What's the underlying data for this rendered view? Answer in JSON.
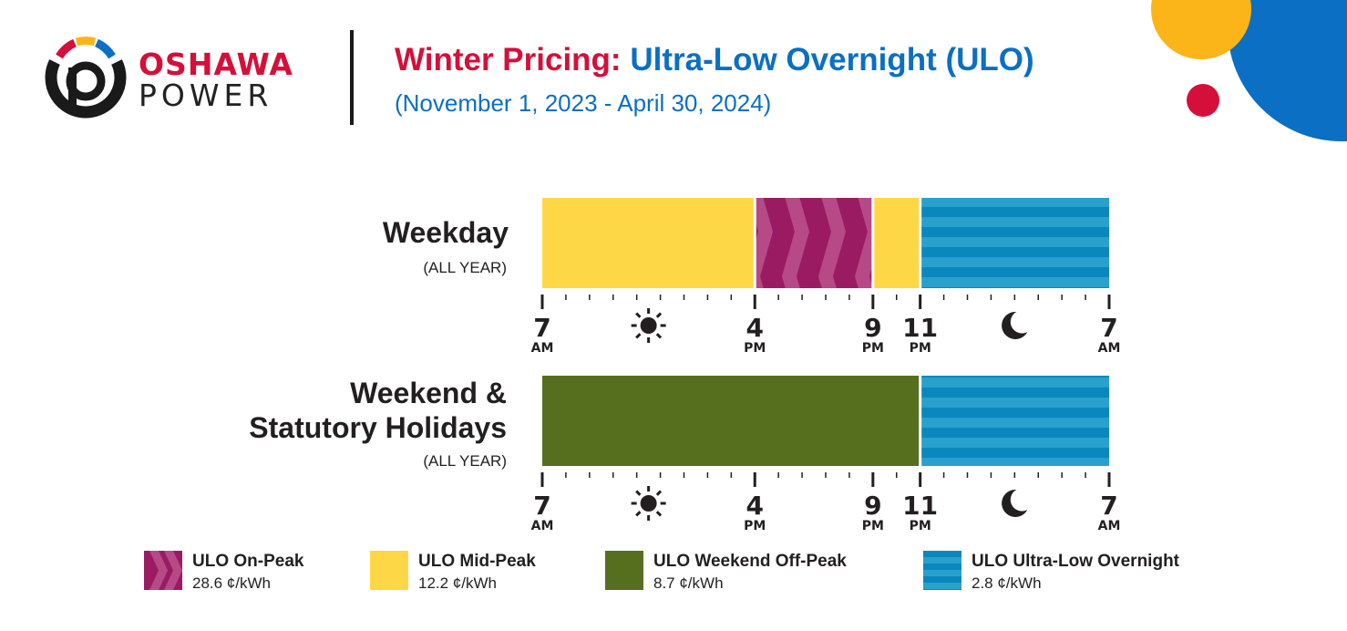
{
  "brand": {
    "name_line1": "OSHAWA",
    "name_line2": "POWER",
    "colors": {
      "red": "#d50f3a",
      "yellow": "#fbb519",
      "blue": "#0b6fc3",
      "black": "#1a1a1a"
    }
  },
  "header": {
    "title_part1": "Winter Pricing:",
    "title_part2": "Ultra-Low Overnight (ULO)",
    "dates": "(November 1, 2023 - April 30, 2024)"
  },
  "chart_data": {
    "type": "bar",
    "subtype": "time-of-use-schedule",
    "time_axis_hours_from_7am": [
      0,
      24
    ],
    "tick_interval_hours": 1,
    "major_ticks": [
      {
        "hour": 0,
        "num": "7",
        "ampm": "AM"
      },
      {
        "hour": 9,
        "num": "4",
        "ampm": "PM"
      },
      {
        "hour": 14,
        "num": "9",
        "ampm": "PM"
      },
      {
        "hour": 16,
        "num": "11",
        "ampm": "PM"
      },
      {
        "hour": 24,
        "num": "7",
        "ampm": "AM"
      }
    ],
    "axis_icons": [
      {
        "icon": "sun-icon",
        "hour": 4.5
      },
      {
        "icon": "moon-icon",
        "hour": 20
      }
    ],
    "rows": [
      {
        "title": "Weekday",
        "subtitle": "(ALL YEAR)",
        "segments": [
          {
            "start": "7 AM",
            "end": "4 PM",
            "start_hour": 0,
            "end_hour": 9,
            "category": "mid"
          },
          {
            "start": "4 PM",
            "end": "9 PM",
            "start_hour": 9,
            "end_hour": 14,
            "category": "on"
          },
          {
            "start": "9 PM",
            "end": "11 PM",
            "start_hour": 14,
            "end_hour": 16,
            "category": "mid"
          },
          {
            "start": "11 PM",
            "end": "7 AM",
            "start_hour": 16,
            "end_hour": 24,
            "category": "ulo"
          }
        ]
      },
      {
        "title_line1": "Weekend &",
        "title_line2": "Statutory Holidays",
        "subtitle": "(ALL YEAR)",
        "segments": [
          {
            "start": "7 AM",
            "end": "11 PM",
            "start_hour": 0,
            "end_hour": 16,
            "category": "weekend"
          },
          {
            "start": "11 PM",
            "end": "7 AM",
            "start_hour": 16,
            "end_hour": 24,
            "category": "ulo"
          }
        ]
      }
    ],
    "legend": [
      {
        "key": "on",
        "label": "ULO On-Peak",
        "price": "28.6 ¢/kWh",
        "price_cents_per_kwh": 28.6,
        "color": "#9b1b62"
      },
      {
        "key": "mid",
        "label": "ULO Mid-Peak",
        "price": "12.2 ¢/kWh",
        "price_cents_per_kwh": 12.2,
        "color": "#fdd746"
      },
      {
        "key": "weekend",
        "label": "ULO Weekend Off-Peak",
        "price": "8.7 ¢/kWh",
        "price_cents_per_kwh": 8.7,
        "color": "#566f1f"
      },
      {
        "key": "ulo",
        "label": "ULO Ultra-Low Overnight",
        "price": "2.8 ¢/kWh",
        "price_cents_per_kwh": 2.8,
        "color": "#0a88be"
      }
    ]
  }
}
